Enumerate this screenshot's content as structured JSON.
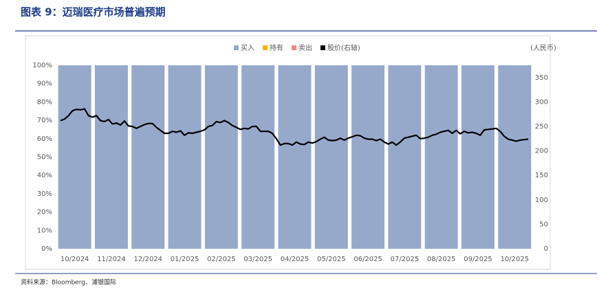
{
  "header": {
    "title": "图表 9：迈瑞医疗市场普遍预期"
  },
  "footer": {
    "source": "资料来源：Bloomberg、浦银国际"
  },
  "chart_data": {
    "type": "bar",
    "stacked": true,
    "unit_label": "(人民币)",
    "categories": [
      "10/2024",
      "11/2024",
      "12/2024",
      "01/2025",
      "02/2025",
      "03/2025",
      "04/2025",
      "05/2025",
      "06/2025",
      "07/2025",
      "08/2025",
      "09/2025",
      "10/2025"
    ],
    "series": [
      {
        "name": "买入",
        "color": "#97a9cb",
        "values": [
          100,
          100,
          100,
          100,
          100,
          100,
          100,
          100,
          100,
          100,
          100,
          100,
          100
        ]
      },
      {
        "name": "持有",
        "color": "#f2b800",
        "values": [
          0,
          0,
          0,
          0,
          0,
          0,
          0,
          0,
          0,
          0,
          0,
          0,
          0
        ]
      },
      {
        "name": "卖出",
        "color": "#f08a80",
        "values": [
          0,
          0,
          0,
          0,
          0,
          0,
          0,
          0,
          0,
          0,
          0,
          0,
          0
        ]
      }
    ],
    "line_series": {
      "name": "股价(右轴)",
      "color": "#000000",
      "axis": "y2",
      "values": [
        262,
        265,
        272,
        282,
        285,
        284,
        286,
        272,
        269,
        272,
        262,
        260,
        264,
        255,
        257,
        253,
        261,
        251,
        250,
        246,
        250,
        254,
        256,
        256,
        248,
        242,
        236,
        236,
        240,
        238,
        241,
        232,
        237,
        236,
        238,
        240,
        243,
        250,
        252,
        260,
        258,
        262,
        258,
        252,
        248,
        244,
        246,
        245,
        250,
        250,
        240,
        240,
        240,
        236,
        225,
        212,
        215,
        215,
        212,
        218,
        214,
        213,
        218,
        216,
        219,
        224,
        228,
        222,
        221,
        222,
        226,
        222,
        226,
        229,
        232,
        231,
        226,
        224,
        224,
        221,
        224,
        218,
        214,
        218,
        212,
        218,
        226,
        228,
        230,
        232,
        225,
        226,
        228,
        232,
        234,
        238,
        240,
        242,
        236,
        242,
        235,
        240,
        237,
        238,
        236,
        232,
        243,
        244,
        245,
        246,
        240,
        230,
        224,
        222,
        220,
        222,
        223,
        224
      ]
    },
    "ylim": [
      0,
      100
    ],
    "yticks": [
      {
        "value": 0,
        "label": "0%"
      },
      {
        "value": 10,
        "label": "10%"
      },
      {
        "value": 20,
        "label": "20%"
      },
      {
        "value": 30,
        "label": "30%"
      },
      {
        "value": 40,
        "label": "40%"
      },
      {
        "value": 50,
        "label": "50%"
      },
      {
        "value": 60,
        "label": "60%"
      },
      {
        "value": 70,
        "label": "70%"
      },
      {
        "value": 80,
        "label": "80%"
      },
      {
        "value": 90,
        "label": "90%"
      },
      {
        "value": 100,
        "label": "100%"
      }
    ],
    "y2lim": [
      0,
      375
    ],
    "y2ticks": [
      0,
      50,
      100,
      150,
      200,
      250,
      300,
      350
    ]
  }
}
